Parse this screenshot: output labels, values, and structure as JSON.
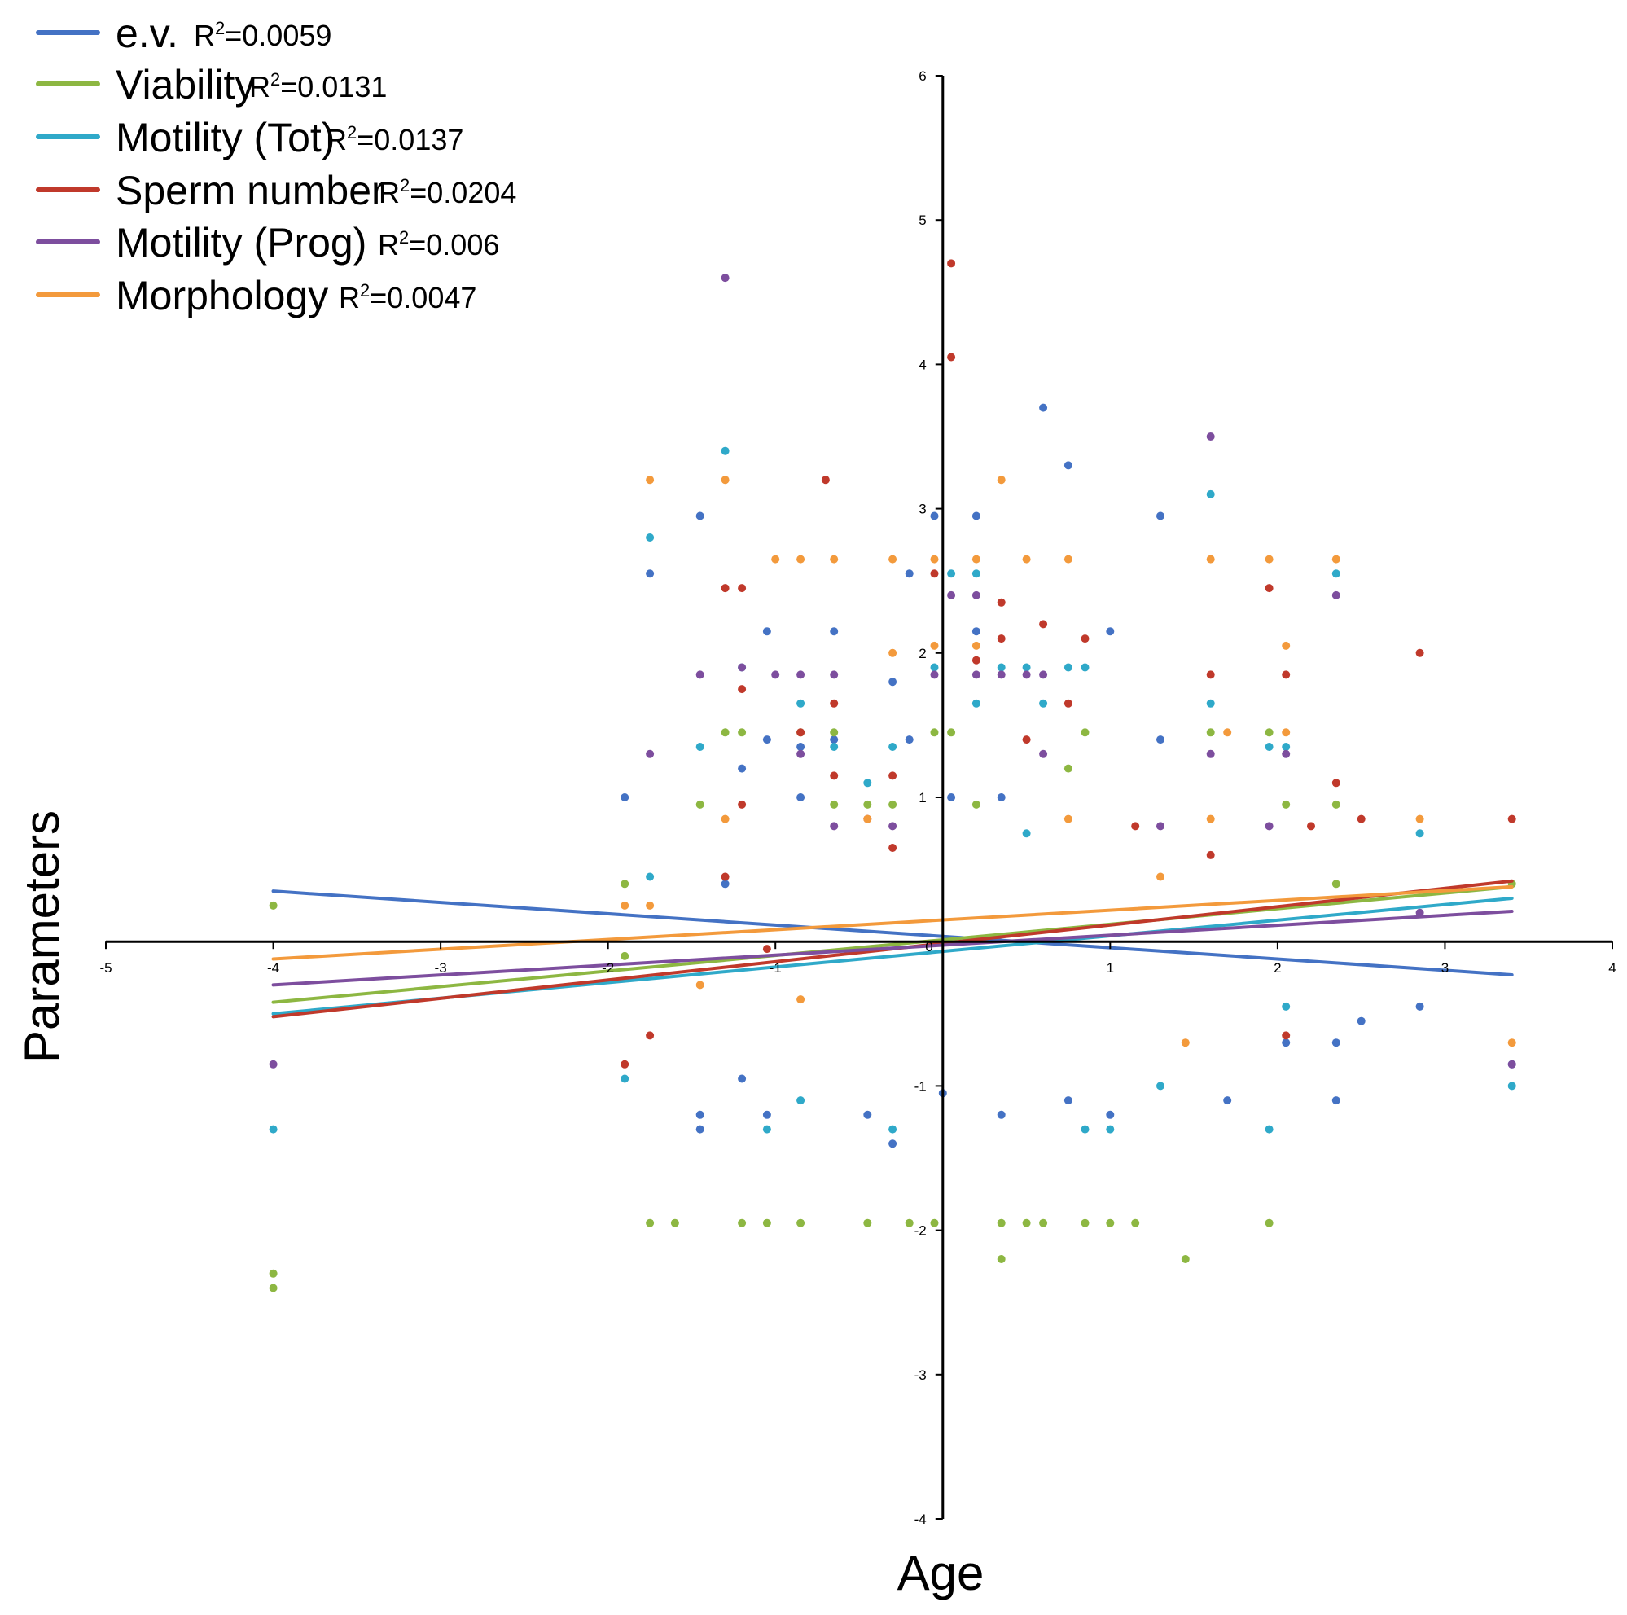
{
  "chart_data": {
    "type": "scatter",
    "title": "",
    "xlabel": "Age",
    "ylabel": "Parameters",
    "xlim": [
      -5,
      4
    ],
    "ylim": [
      -4,
      6
    ],
    "x_ticks": [
      -5,
      -4,
      -3,
      -2,
      -1,
      0,
      1,
      2,
      3,
      4
    ],
    "y_ticks": [
      -4,
      -3,
      -2,
      -1,
      0,
      1,
      2,
      3,
      4,
      5,
      6
    ],
    "x_tick_labels": [
      "-5",
      "-4",
      "-3",
      "-2",
      "-1",
      "0",
      "1",
      "2",
      "3",
      "4"
    ],
    "y_tick_labels": [
      "-4",
      "-3",
      "-2",
      "-1",
      "",
      "1",
      "2",
      "3",
      "4",
      "5",
      "6"
    ],
    "origin_label": "0",
    "grid": false,
    "legend_position": "top-left",
    "series": [
      {
        "name": "e.v.",
        "r2_prefix": "R",
        "r2_exp": "2",
        "r2_value": "=0.0059",
        "color": "#4472C4",
        "trend": [
          [
            -4,
            0.35
          ],
          [
            3.4,
            -0.23
          ]
        ],
        "points": [
          [
            -1.9,
            1.0
          ],
          [
            -1.75,
            2.55
          ],
          [
            -1.45,
            2.95
          ],
          [
            -1.45,
            -1.3
          ],
          [
            -1.45,
            -1.2
          ],
          [
            -1.3,
            0.4
          ],
          [
            -1.2,
            1.2
          ],
          [
            -1.2,
            -0.95
          ],
          [
            -1.05,
            2.15
          ],
          [
            -1.05,
            1.4
          ],
          [
            -1.05,
            -1.2
          ],
          [
            -0.85,
            1.0
          ],
          [
            -0.85,
            1.35
          ],
          [
            -0.65,
            2.15
          ],
          [
            -0.65,
            1.4
          ],
          [
            -0.45,
            -1.2
          ],
          [
            -0.3,
            1.8
          ],
          [
            -0.3,
            -1.4
          ],
          [
            -0.2,
            1.4
          ],
          [
            -0.2,
            2.55
          ],
          [
            -0.05,
            2.95
          ],
          [
            0.0,
            -1.05
          ],
          [
            0.05,
            1.0
          ],
          [
            0.2,
            2.95
          ],
          [
            0.2,
            2.15
          ],
          [
            0.35,
            1.0
          ],
          [
            0.35,
            -1.2
          ],
          [
            0.6,
            3.7
          ],
          [
            0.75,
            3.3
          ],
          [
            0.75,
            -1.1
          ],
          [
            1.0,
            2.15
          ],
          [
            1.0,
            -1.2
          ],
          [
            1.3,
            2.95
          ],
          [
            1.3,
            1.4
          ],
          [
            1.7,
            -1.1
          ],
          [
            2.05,
            -0.7
          ],
          [
            2.35,
            -1.1
          ],
          [
            2.35,
            -0.7
          ],
          [
            2.5,
            -0.55
          ],
          [
            2.85,
            -0.45
          ],
          [
            3.4,
            -0.85
          ]
        ]
      },
      {
        "name": "Viability",
        "r2_prefix": "R",
        "r2_exp": "2",
        "r2_value": "=0.0131",
        "color": "#8DB742",
        "trend": [
          [
            -4,
            -0.42
          ],
          [
            3.4,
            0.38
          ]
        ],
        "points": [
          [
            -4,
            0.25
          ],
          [
            -4,
            -2.3
          ],
          [
            -4,
            -2.4
          ],
          [
            -1.9,
            0.4
          ],
          [
            -1.9,
            -0.1
          ],
          [
            -1.75,
            -1.95
          ],
          [
            -1.6,
            -1.95
          ],
          [
            -1.45,
            0.95
          ],
          [
            -1.3,
            1.45
          ],
          [
            -1.2,
            1.45
          ],
          [
            -1.2,
            -1.95
          ],
          [
            -1.05,
            -1.95
          ],
          [
            -0.85,
            1.45
          ],
          [
            -0.85,
            -1.95
          ],
          [
            -0.65,
            1.45
          ],
          [
            -0.65,
            0.95
          ],
          [
            -0.45,
            0.95
          ],
          [
            -0.45,
            -1.95
          ],
          [
            -0.3,
            0.95
          ],
          [
            -0.2,
            -1.95
          ],
          [
            -0.05,
            1.45
          ],
          [
            -0.05,
            -1.95
          ],
          [
            0.05,
            1.45
          ],
          [
            0.2,
            0.95
          ],
          [
            0.35,
            -1.95
          ],
          [
            0.35,
            -2.2
          ],
          [
            0.5,
            -1.95
          ],
          [
            0.6,
            -1.95
          ],
          [
            0.75,
            1.2
          ],
          [
            0.85,
            1.45
          ],
          [
            0.85,
            -1.95
          ],
          [
            1.0,
            -1.95
          ],
          [
            1.15,
            -1.95
          ],
          [
            1.45,
            -2.2
          ],
          [
            1.6,
            1.45
          ],
          [
            1.95,
            1.45
          ],
          [
            1.95,
            -1.95
          ],
          [
            2.05,
            0.95
          ],
          [
            2.35,
            0.95
          ],
          [
            2.35,
            0.4
          ],
          [
            3.4,
            0.4
          ]
        ]
      },
      {
        "name": "Motility (Tot)",
        "r2_prefix": "R",
        "r2_exp": "2",
        "r2_value": "=0.0137",
        "color": "#2FA9C9",
        "trend": [
          [
            -4,
            -0.5
          ],
          [
            3.4,
            0.3
          ]
        ],
        "points": [
          [
            -4,
            -1.3
          ],
          [
            -1.9,
            -0.95
          ],
          [
            -1.75,
            2.8
          ],
          [
            -1.75,
            0.45
          ],
          [
            -1.45,
            1.35
          ],
          [
            -1.3,
            3.4
          ],
          [
            -1.2,
            1.9
          ],
          [
            -1.05,
            -1.3
          ],
          [
            -0.85,
            1.65
          ],
          [
            -0.85,
            -1.1
          ],
          [
            -0.65,
            1.35
          ],
          [
            -0.45,
            1.1
          ],
          [
            -0.3,
            1.35
          ],
          [
            -0.3,
            -1.3
          ],
          [
            -0.05,
            1.9
          ],
          [
            0.05,
            2.55
          ],
          [
            0.2,
            2.55
          ],
          [
            0.2,
            1.65
          ],
          [
            0.35,
            1.9
          ],
          [
            0.5,
            1.9
          ],
          [
            0.5,
            0.75
          ],
          [
            0.6,
            1.65
          ],
          [
            0.75,
            1.9
          ],
          [
            0.85,
            1.9
          ],
          [
            0.85,
            -1.3
          ],
          [
            1.0,
            -1.3
          ],
          [
            1.3,
            -1.0
          ],
          [
            1.6,
            3.1
          ],
          [
            1.6,
            1.65
          ],
          [
            1.95,
            1.35
          ],
          [
            1.95,
            -1.3
          ],
          [
            2.05,
            1.35
          ],
          [
            2.05,
            -0.45
          ],
          [
            2.35,
            2.55
          ],
          [
            2.85,
            0.75
          ],
          [
            3.4,
            -1.0
          ]
        ]
      },
      {
        "name": "Sperm number",
        "r2_prefix": "R",
        "r2_exp": "2",
        "r2_value": "=0.0204",
        "color": "#C0392B",
        "trend": [
          [
            -4,
            -0.52
          ],
          [
            3.4,
            0.42
          ]
        ],
        "points": [
          [
            -1.9,
            -0.85
          ],
          [
            -1.75,
            -0.65
          ],
          [
            -1.3,
            2.45
          ],
          [
            -1.3,
            0.45
          ],
          [
            -1.2,
            2.45
          ],
          [
            -1.2,
            1.75
          ],
          [
            -1.2,
            0.95
          ],
          [
            -1.05,
            -0.05
          ],
          [
            -0.85,
            1.45
          ],
          [
            -0.7,
            3.2
          ],
          [
            -0.65,
            1.65
          ],
          [
            -0.65,
            1.15
          ],
          [
            -0.45,
            0.85
          ],
          [
            -0.3,
            1.15
          ],
          [
            -0.3,
            0.65
          ],
          [
            -0.05,
            2.55
          ],
          [
            0.05,
            4.7
          ],
          [
            0.05,
            4.05
          ],
          [
            0.2,
            1.95
          ],
          [
            0.35,
            2.35
          ],
          [
            0.35,
            2.1
          ],
          [
            0.5,
            1.4
          ],
          [
            0.6,
            2.2
          ],
          [
            0.75,
            1.65
          ],
          [
            0.85,
            2.1
          ],
          [
            1.15,
            0.8
          ],
          [
            1.6,
            1.85
          ],
          [
            1.6,
            0.6
          ],
          [
            1.95,
            2.45
          ],
          [
            2.05,
            1.85
          ],
          [
            2.05,
            -0.65
          ],
          [
            2.2,
            0.8
          ],
          [
            2.35,
            1.1
          ],
          [
            2.5,
            0.85
          ],
          [
            2.85,
            2.0
          ],
          [
            3.4,
            0.85
          ]
        ]
      },
      {
        "name": "Motility (Prog)",
        "r2_prefix": "R",
        "r2_exp": "2",
        "r2_value": "=0.006",
        "color": "#7D4E9E",
        "trend": [
          [
            -4,
            -0.3
          ],
          [
            3.4,
            0.21
          ]
        ],
        "points": [
          [
            -4,
            -0.85
          ],
          [
            -1.75,
            1.3
          ],
          [
            -1.45,
            1.85
          ],
          [
            -1.3,
            4.6
          ],
          [
            -1.2,
            1.9
          ],
          [
            -1.0,
            1.85
          ],
          [
            -0.85,
            1.85
          ],
          [
            -0.85,
            1.3
          ],
          [
            -0.65,
            1.85
          ],
          [
            -0.65,
            0.8
          ],
          [
            -0.3,
            0.8
          ],
          [
            -0.05,
            1.85
          ],
          [
            0.05,
            2.4
          ],
          [
            0.2,
            2.4
          ],
          [
            0.2,
            1.85
          ],
          [
            0.35,
            1.85
          ],
          [
            0.5,
            1.85
          ],
          [
            0.6,
            1.85
          ],
          [
            0.6,
            1.3
          ],
          [
            1.3,
            0.8
          ],
          [
            1.6,
            3.5
          ],
          [
            1.6,
            1.3
          ],
          [
            1.95,
            0.8
          ],
          [
            2.05,
            1.3
          ],
          [
            2.35,
            2.4
          ],
          [
            2.85,
            0.2
          ],
          [
            3.4,
            -0.85
          ]
        ]
      },
      {
        "name": "Morphology",
        "r2_prefix": "R",
        "r2_exp": "2",
        "r2_value": "=0.0047",
        "color": "#F39A3C",
        "trend": [
          [
            -4,
            -0.12
          ],
          [
            3.4,
            0.38
          ]
        ],
        "points": [
          [
            -1.9,
            0.25
          ],
          [
            -1.75,
            3.2
          ],
          [
            -1.75,
            0.25
          ],
          [
            -1.45,
            -0.3
          ],
          [
            -1.3,
            3.2
          ],
          [
            -1.3,
            0.85
          ],
          [
            -1.0,
            2.65
          ],
          [
            -0.85,
            2.65
          ],
          [
            -0.85,
            -0.4
          ],
          [
            -0.65,
            2.65
          ],
          [
            -0.45,
            0.85
          ],
          [
            -0.3,
            2.65
          ],
          [
            -0.3,
            2.0
          ],
          [
            -0.05,
            2.65
          ],
          [
            -0.05,
            2.05
          ],
          [
            0.2,
            2.05
          ],
          [
            0.2,
            2.65
          ],
          [
            0.35,
            3.2
          ],
          [
            0.5,
            2.65
          ],
          [
            0.75,
            2.65
          ],
          [
            0.75,
            0.85
          ],
          [
            1.3,
            0.45
          ],
          [
            1.45,
            -0.7
          ],
          [
            1.6,
            2.65
          ],
          [
            1.6,
            0.85
          ],
          [
            1.7,
            1.45
          ],
          [
            1.95,
            2.65
          ],
          [
            2.05,
            2.05
          ],
          [
            2.05,
            1.45
          ],
          [
            2.35,
            2.65
          ],
          [
            2.85,
            0.85
          ],
          [
            3.4,
            -0.7
          ]
        ]
      }
    ]
  }
}
